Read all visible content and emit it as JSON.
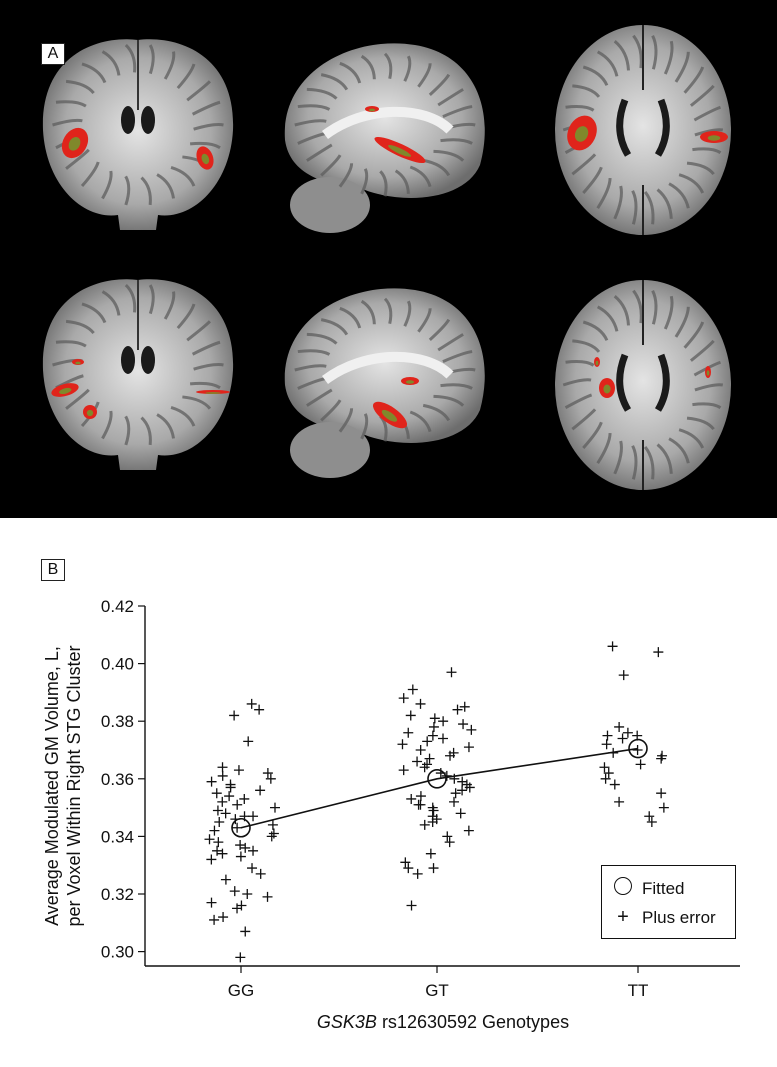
{
  "panel_a": {
    "label": "A",
    "views": [
      "coronal",
      "sagittal",
      "axial",
      "coronal",
      "sagittal",
      "axial"
    ]
  },
  "panel_b": {
    "label": "B",
    "legend": {
      "fitted_label": "Fitted",
      "error_label": "Plus error"
    }
  },
  "chart_data": {
    "type": "scatter",
    "xlabel_italic": "GSK3B",
    "xlabel_rest": " rs12630592 Genotypes",
    "ylabel_line1": "Average  Modulated GM Volume, L,",
    "ylabel_line2": "per Voxel Within Right STG Cluster",
    "categories": [
      "GG",
      "GT",
      "TT"
    ],
    "ylim": [
      0.295,
      0.42
    ],
    "yticks": [
      0.3,
      0.32,
      0.34,
      0.36,
      0.38,
      0.4,
      0.42
    ],
    "legend_position": "bottom-right",
    "fitted": [
      0.343,
      0.36,
      0.3705
    ],
    "points": [
      {
        "category": "GG",
        "values": [
          0.298,
          0.307,
          0.311,
          0.312,
          0.315,
          0.316,
          0.317,
          0.319,
          0.32,
          0.321,
          0.325,
          0.327,
          0.329,
          0.332,
          0.333,
          0.334,
          0.335,
          0.335,
          0.336,
          0.337,
          0.338,
          0.339,
          0.34,
          0.341,
          0.342,
          0.343,
          0.344,
          0.345,
          0.346,
          0.347,
          0.347,
          0.348,
          0.349,
          0.35,
          0.351,
          0.352,
          0.353,
          0.354,
          0.355,
          0.356,
          0.357,
          0.358,
          0.359,
          0.36,
          0.361,
          0.362,
          0.363,
          0.364,
          0.373,
          0.382,
          0.384,
          0.386
        ]
      },
      {
        "category": "GT",
        "values": [
          0.316,
          0.327,
          0.329,
          0.329,
          0.331,
          0.334,
          0.338,
          0.34,
          0.342,
          0.344,
          0.345,
          0.346,
          0.347,
          0.348,
          0.349,
          0.35,
          0.351,
          0.351,
          0.352,
          0.353,
          0.354,
          0.355,
          0.356,
          0.357,
          0.358,
          0.359,
          0.36,
          0.361,
          0.362,
          0.363,
          0.364,
          0.365,
          0.366,
          0.367,
          0.368,
          0.369,
          0.37,
          0.371,
          0.372,
          0.373,
          0.374,
          0.375,
          0.376,
          0.377,
          0.378,
          0.379,
          0.38,
          0.381,
          0.382,
          0.384,
          0.385,
          0.386,
          0.388,
          0.391,
          0.397
        ]
      },
      {
        "category": "TT",
        "values": [
          0.345,
          0.347,
          0.35,
          0.352,
          0.355,
          0.358,
          0.36,
          0.362,
          0.364,
          0.365,
          0.367,
          0.368,
          0.369,
          0.37,
          0.372,
          0.374,
          0.375,
          0.375,
          0.376,
          0.378,
          0.396,
          0.404,
          0.406
        ]
      }
    ]
  }
}
